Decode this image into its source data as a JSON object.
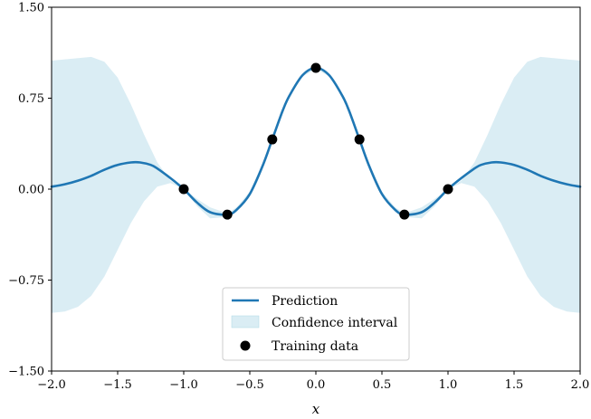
{
  "chart_data": {
    "type": "line",
    "xlabel": "x",
    "ylabel": "",
    "xlim": [
      -2.0,
      2.0
    ],
    "ylim": [
      -1.5,
      1.5
    ],
    "x_ticks": [
      -2.0,
      -1.5,
      -1.0,
      -0.5,
      0.0,
      0.5,
      1.0,
      1.5,
      2.0
    ],
    "x_tick_labels": [
      "−2.0",
      "−1.5",
      "−1.0",
      "−0.5",
      "0.0",
      "0.5",
      "1.0",
      "1.5",
      "2.0"
    ],
    "y_ticks": [
      -1.5,
      -0.75,
      0.0,
      0.75,
      1.5
    ],
    "y_tick_labels": [
      "−1.50",
      "−0.75",
      "0.00",
      "0.75",
      "1.50"
    ],
    "grid": false,
    "legend_position": "bottom-center",
    "colors": {
      "prediction": "#1f77b4",
      "confidence": "#add8e6",
      "training": "#000000"
    },
    "series": [
      {
        "name": "Prediction",
        "kind": "line",
        "x": [
          -2.0,
          -1.9,
          -1.8,
          -1.7,
          -1.6,
          -1.5,
          -1.4,
          -1.33,
          -1.25,
          -1.2,
          -1.1,
          -1.0,
          -0.9,
          -0.8,
          -0.67,
          -0.6,
          -0.5,
          -0.4,
          -0.33,
          -0.25,
          -0.2,
          -0.1,
          0.0,
          0.1,
          0.2,
          0.25,
          0.33,
          0.4,
          0.5,
          0.6,
          0.67,
          0.8,
          0.9,
          1.0,
          1.1,
          1.2,
          1.25,
          1.33,
          1.4,
          1.5,
          1.6,
          1.7,
          1.8,
          1.9,
          2.0
        ],
        "y": [
          0.02,
          0.04,
          0.07,
          0.11,
          0.16,
          0.2,
          0.22,
          0.22,
          0.2,
          0.17,
          0.09,
          0.0,
          -0.11,
          -0.19,
          -0.21,
          -0.17,
          -0.04,
          0.2,
          0.41,
          0.65,
          0.77,
          0.94,
          1.0,
          0.94,
          0.77,
          0.65,
          0.41,
          0.2,
          -0.04,
          -0.17,
          -0.21,
          -0.19,
          -0.11,
          0.0,
          0.09,
          0.17,
          0.2,
          0.22,
          0.22,
          0.2,
          0.16,
          0.11,
          0.07,
          0.04,
          0.02
        ]
      },
      {
        "name": "Confidence interval",
        "kind": "band",
        "x": [
          -2.0,
          -1.9,
          -1.8,
          -1.7,
          -1.6,
          -1.5,
          -1.4,
          -1.3,
          -1.2,
          -1.1,
          -1.0,
          -0.9,
          -0.8,
          -0.67,
          -0.6,
          -0.5,
          -0.4,
          -0.33,
          -0.25,
          -0.2,
          -0.1,
          0.0,
          0.1,
          0.2,
          0.25,
          0.33,
          0.4,
          0.5,
          0.6,
          0.67,
          0.8,
          0.9,
          1.0,
          1.1,
          1.2,
          1.3,
          1.4,
          1.5,
          1.6,
          1.7,
          1.8,
          1.9,
          2.0
        ],
        "upper": [
          1.06,
          1.07,
          1.08,
          1.09,
          1.05,
          0.92,
          0.7,
          0.45,
          0.22,
          0.07,
          0.0,
          -0.08,
          -0.15,
          -0.2,
          -0.15,
          -0.02,
          0.22,
          0.42,
          0.66,
          0.78,
          0.95,
          1.01,
          0.95,
          0.78,
          0.66,
          0.42,
          0.22,
          -0.02,
          -0.15,
          -0.2,
          -0.15,
          -0.08,
          0.0,
          0.07,
          0.22,
          0.45,
          0.7,
          0.92,
          1.05,
          1.09,
          1.08,
          1.07,
          1.06
        ],
        "lower": [
          -1.02,
          -1.01,
          -0.97,
          -0.88,
          -0.72,
          -0.5,
          -0.28,
          -0.1,
          0.02,
          0.05,
          0.0,
          -0.14,
          -0.24,
          -0.23,
          -0.19,
          -0.06,
          0.18,
          0.4,
          0.64,
          0.76,
          0.93,
          0.99,
          0.93,
          0.76,
          0.64,
          0.4,
          0.18,
          -0.06,
          -0.19,
          -0.23,
          -0.24,
          -0.14,
          0.0,
          0.05,
          0.02,
          -0.1,
          -0.28,
          -0.5,
          -0.72,
          -0.88,
          -0.97,
          -1.01,
          -1.02
        ]
      },
      {
        "name": "Training data",
        "kind": "scatter",
        "x": [
          -1.0,
          -0.67,
          -0.33,
          0.0,
          0.33,
          0.67,
          1.0
        ],
        "y": [
          0.0,
          -0.21,
          0.41,
          1.0,
          0.41,
          -0.21,
          0.0
        ]
      }
    ]
  }
}
